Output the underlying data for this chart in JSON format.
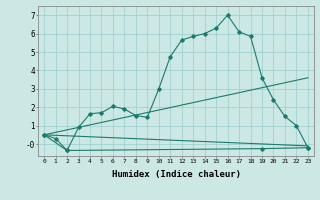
{
  "title": "",
  "xlabel": "Humidex (Indice chaleur)",
  "bg_color": "#cce8e4",
  "line_color": "#1a7a6e",
  "grid_color": "#99cccc",
  "xlim": [
    -0.5,
    23.5
  ],
  "ylim": [
    -0.65,
    7.5
  ],
  "x_ticks": [
    0,
    1,
    2,
    3,
    4,
    5,
    6,
    7,
    8,
    9,
    10,
    11,
    12,
    13,
    14,
    15,
    16,
    17,
    18,
    19,
    20,
    21,
    22,
    23
  ],
  "y_ticks": [
    0,
    1,
    2,
    3,
    4,
    5,
    6,
    7
  ],
  "y_tick_labels": [
    "-0",
    "1",
    "2",
    "3",
    "4",
    "5",
    "6",
    "7"
  ],
  "series1_x": [
    0,
    1,
    2,
    3,
    4,
    5,
    6,
    7,
    8,
    9,
    10,
    11,
    12,
    13,
    14,
    15,
    16,
    17,
    18,
    19,
    20,
    21,
    22,
    23
  ],
  "series1_y": [
    0.5,
    0.3,
    -0.35,
    0.9,
    1.65,
    1.7,
    2.05,
    1.9,
    1.55,
    1.45,
    3.0,
    4.75,
    5.65,
    5.85,
    6.0,
    6.3,
    7.0,
    6.1,
    5.85,
    3.6,
    2.4,
    1.5,
    1.0,
    -0.2
  ],
  "series2_x": [
    0,
    23
  ],
  "series2_y": [
    0.5,
    3.6
  ],
  "series3_x": [
    0,
    23
  ],
  "series3_y": [
    0.5,
    -0.1
  ],
  "series4_x": [
    0,
    2,
    19,
    23
  ],
  "series4_y": [
    0.5,
    -0.35,
    -0.25,
    -0.2
  ]
}
